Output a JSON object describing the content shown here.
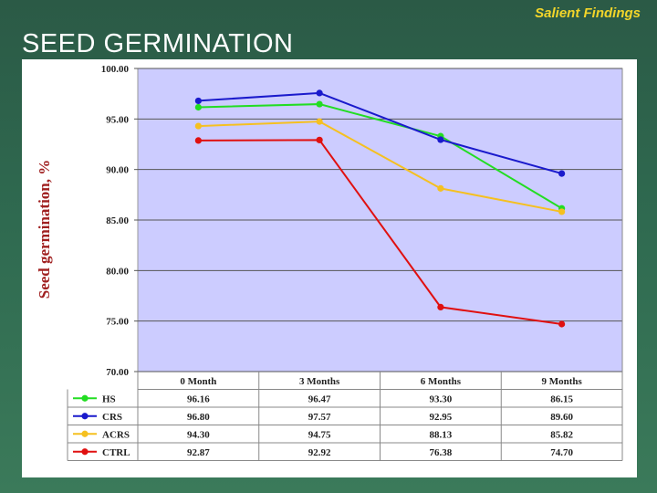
{
  "slide": {
    "header": "Salient Findings",
    "title": "SEED GERMINATION"
  },
  "chart_data": {
    "type": "line",
    "ylabel": "Seed germination, %",
    "categories": [
      "0 Month",
      "3 Months",
      "6 Months",
      "9 Months"
    ],
    "ylim": [
      70,
      100
    ],
    "yticks": [
      "70.00",
      "75.00",
      "80.00",
      "85.00",
      "90.00",
      "95.00",
      "100.00"
    ],
    "plot_background": "#ccccff",
    "grid": "horizontal",
    "legend": "data-table-below",
    "series": [
      {
        "name": "HS",
        "color": "#22dd22",
        "values": [
          96.16,
          96.47,
          93.3,
          86.15
        ],
        "labels": [
          "96.16",
          "96.47",
          "93.30",
          "86.15"
        ]
      },
      {
        "name": "CRS",
        "color": "#1a1acc",
        "values": [
          96.8,
          97.57,
          92.95,
          89.6
        ],
        "labels": [
          "96.80",
          "97.57",
          "92.95",
          "89.60"
        ]
      },
      {
        "name": "ACRS",
        "color": "#f5c020",
        "values": [
          94.3,
          94.75,
          88.13,
          85.82
        ],
        "labels": [
          "94.30",
          "94.75",
          "88.13",
          "85.82"
        ]
      },
      {
        "name": "CTRL",
        "color": "#e01010",
        "values": [
          92.87,
          92.92,
          76.38,
          74.7
        ],
        "labels": [
          "92.87",
          "92.92",
          "76.38",
          "74.70"
        ]
      }
    ]
  }
}
